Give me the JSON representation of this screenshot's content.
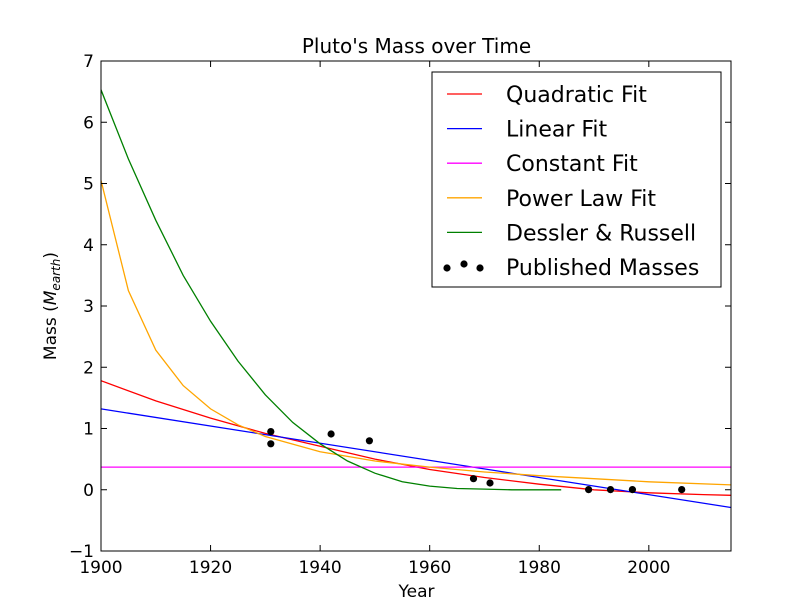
{
  "chart_data": {
    "type": "line",
    "title": "Pluto's Mass over Time",
    "xlabel": "Year",
    "ylabel_prefix": "Mass (",
    "ylabel_symbol": "M",
    "ylabel_subscript": "earth",
    "ylabel_suffix": ")",
    "xlim": [
      1900,
      2015
    ],
    "ylim": [
      -1,
      7
    ],
    "xticks": [
      1900,
      1920,
      1940,
      1960,
      1980,
      2000
    ],
    "yticks": [
      -1,
      0,
      1,
      2,
      3,
      4,
      5,
      6,
      7
    ],
    "ytick_labels": [
      "−1",
      "0",
      "1",
      "2",
      "3",
      "4",
      "5",
      "6",
      "7"
    ],
    "legend_position": "top-right",
    "series": [
      {
        "name": "Quadratic Fit",
        "color": "#ff0000",
        "x": [
          1900,
          1910,
          1920,
          1930,
          1940,
          1950,
          1960,
          1970,
          1980,
          1990,
          2000,
          2010,
          2015
        ],
        "y": [
          1.78,
          1.45,
          1.17,
          0.92,
          0.71,
          0.5,
          0.33,
          0.2,
          0.09,
          0.0,
          -0.05,
          -0.08,
          -0.09
        ]
      },
      {
        "name": "Linear Fit",
        "color": "#0000ff",
        "x": [
          1900,
          2015
        ],
        "y": [
          1.32,
          -0.29
        ]
      },
      {
        "name": "Constant Fit",
        "color": "#ff00ff",
        "x": [
          1900,
          2015
        ],
        "y": [
          0.37,
          0.37
        ]
      },
      {
        "name": "Power Law Fit",
        "color": "#ffa500",
        "x": [
          1900,
          1905,
          1910,
          1915,
          1920,
          1925,
          1930,
          1940,
          1950,
          1960,
          1970,
          1980,
          1990,
          2000,
          2015
        ],
        "y": [
          5.05,
          3.25,
          2.28,
          1.7,
          1.32,
          1.06,
          0.87,
          0.62,
          0.47,
          0.37,
          0.29,
          0.23,
          0.18,
          0.13,
          0.08
        ]
      },
      {
        "name": "Dessler & Russell",
        "color": "#008000",
        "x": [
          1900,
          1905,
          1910,
          1915,
          1920,
          1925,
          1930,
          1935,
          1940,
          1945,
          1950,
          1955,
          1960,
          1965,
          1970,
          1975,
          1980,
          1984
        ],
        "y": [
          6.53,
          5.4,
          4.4,
          3.5,
          2.75,
          2.1,
          1.55,
          1.1,
          0.75,
          0.47,
          0.27,
          0.13,
          0.06,
          0.02,
          0.01,
          0.0,
          0.0,
          0.0
        ]
      }
    ],
    "scatter": {
      "name": "Published Masses",
      "color": "#000000",
      "x": [
        1931,
        1931,
        1942,
        1949,
        1968,
        1971,
        1989,
        1993,
        1997,
        2006
      ],
      "y": [
        0.95,
        0.75,
        0.91,
        0.8,
        0.18,
        0.11,
        0.002,
        0.002,
        0.002,
        0.002
      ]
    }
  }
}
